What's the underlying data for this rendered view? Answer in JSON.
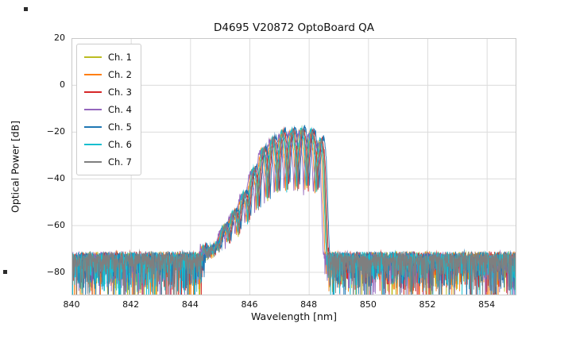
{
  "figure": {
    "background": "#ffffff"
  },
  "chart_data": {
    "type": "line",
    "title": "D4695 V20872 OptoBoard QA",
    "xlabel": "Wavelength [nm]",
    "ylabel": "Optical Power [dB]",
    "xlim": [
      840,
      855
    ],
    "ylim": [
      -90,
      20
    ],
    "xticks": [
      840,
      842,
      844,
      846,
      848,
      850,
      852,
      854
    ],
    "xtick_labels": [
      "840",
      "842",
      "844",
      "846",
      "848",
      "850",
      "852",
      "854"
    ],
    "yticks": [
      20,
      0,
      -20,
      -40,
      -60,
      -80
    ],
    "ytick_labels": [
      "20",
      "0",
      "−20",
      "−40",
      "−60",
      "−80"
    ],
    "grid": true,
    "grid_color": "#dcdcdc",
    "spine_color": "#c9c9c9",
    "legend_position": "upper-left",
    "noise_floor": {
      "top": -72,
      "spike_scale": 4.5,
      "spike_max": 21
    },
    "mode_period_nm": 0.33,
    "peak_envelope": [
      [
        844.35,
        -95
      ],
      [
        844.45,
        -70
      ],
      [
        844.55,
        -75
      ],
      [
        844.65,
        -68
      ],
      [
        844.78,
        -74
      ],
      [
        844.9,
        -67
      ],
      [
        845.05,
        -63
      ],
      [
        845.3,
        -58
      ],
      [
        845.55,
        -53
      ],
      [
        845.8,
        -47
      ],
      [
        846.05,
        -39
      ],
      [
        846.3,
        -31
      ],
      [
        846.55,
        -26
      ],
      [
        846.8,
        -23
      ],
      [
        847.05,
        -21
      ],
      [
        847.3,
        -20
      ],
      [
        847.55,
        -19.5
      ],
      [
        847.8,
        -19.5
      ],
      [
        848.05,
        -20
      ],
      [
        848.25,
        -21
      ],
      [
        848.4,
        -23
      ],
      [
        848.5,
        -30
      ],
      [
        848.58,
        -55
      ],
      [
        848.66,
        -95
      ]
    ],
    "series": [
      {
        "name": "Ch. 1",
        "color": "#bcbd22",
        "shift_nm": 0.0,
        "amp_db": 0.0,
        "seed": 11
      },
      {
        "name": "Ch. 2",
        "color": "#ff7f0e",
        "shift_nm": -0.06,
        "amp_db": -0.5,
        "seed": 22
      },
      {
        "name": "Ch. 3",
        "color": "#d62728",
        "shift_nm": 0.05,
        "amp_db": 0.5,
        "seed": 33
      },
      {
        "name": "Ch. 4",
        "color": "#9467bd",
        "shift_nm": -0.11,
        "amp_db": -1.0,
        "seed": 44
      },
      {
        "name": "Ch. 5",
        "color": "#1f77b4",
        "shift_nm": 0.09,
        "amp_db": 1.2,
        "seed": 55
      },
      {
        "name": "Ch. 6",
        "color": "#17becf",
        "shift_nm": -0.02,
        "amp_db": 0.3,
        "seed": 66
      },
      {
        "name": "Ch. 7",
        "color": "#7f7f7f",
        "shift_nm": 0.02,
        "amp_db": 0.0,
        "seed": 77
      }
    ]
  }
}
